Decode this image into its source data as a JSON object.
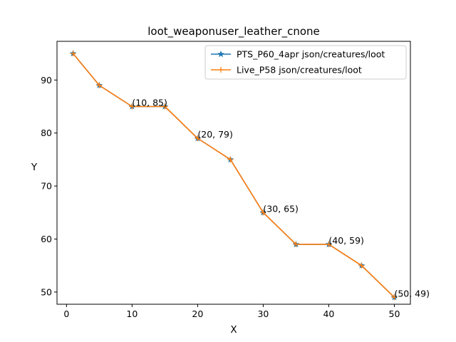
{
  "chart_data": {
    "type": "line",
    "title": "loot_weaponuser_leather_cnone",
    "xlabel": "X",
    "ylabel": "Y",
    "xlim": [
      -1.45,
      52.45
    ],
    "ylim": [
      47.7,
      97.3
    ],
    "xticks": [
      0,
      10,
      20,
      30,
      40,
      50
    ],
    "yticks": [
      50,
      60,
      70,
      80,
      90
    ],
    "grid": false,
    "legend_position": "upper right",
    "x": [
      1,
      5,
      10,
      15,
      20,
      25,
      30,
      35,
      40,
      45,
      50
    ],
    "series": [
      {
        "name": "PTS_P60_4apr json/creatures/loot",
        "color": "#1f77b4",
        "marker": "star",
        "values": [
          95,
          89,
          85,
          85,
          79,
          75,
          65,
          59,
          59,
          55,
          49
        ]
      },
      {
        "name": "Live_P58 json/creatures/loot",
        "color": "#ff7f0e",
        "marker": "plus",
        "values": [
          95,
          89,
          85,
          85,
          79,
          75,
          65,
          59,
          59,
          55,
          49
        ]
      }
    ],
    "annotations": [
      {
        "x": 10,
        "y": 85,
        "text": "(10, 85)"
      },
      {
        "x": 20,
        "y": 79,
        "text": "(20, 79)"
      },
      {
        "x": 30,
        "y": 65,
        "text": "(30, 65)"
      },
      {
        "x": 40,
        "y": 59,
        "text": "(40, 59)"
      },
      {
        "x": 50,
        "y": 49,
        "text": "(50, 49)"
      }
    ]
  }
}
